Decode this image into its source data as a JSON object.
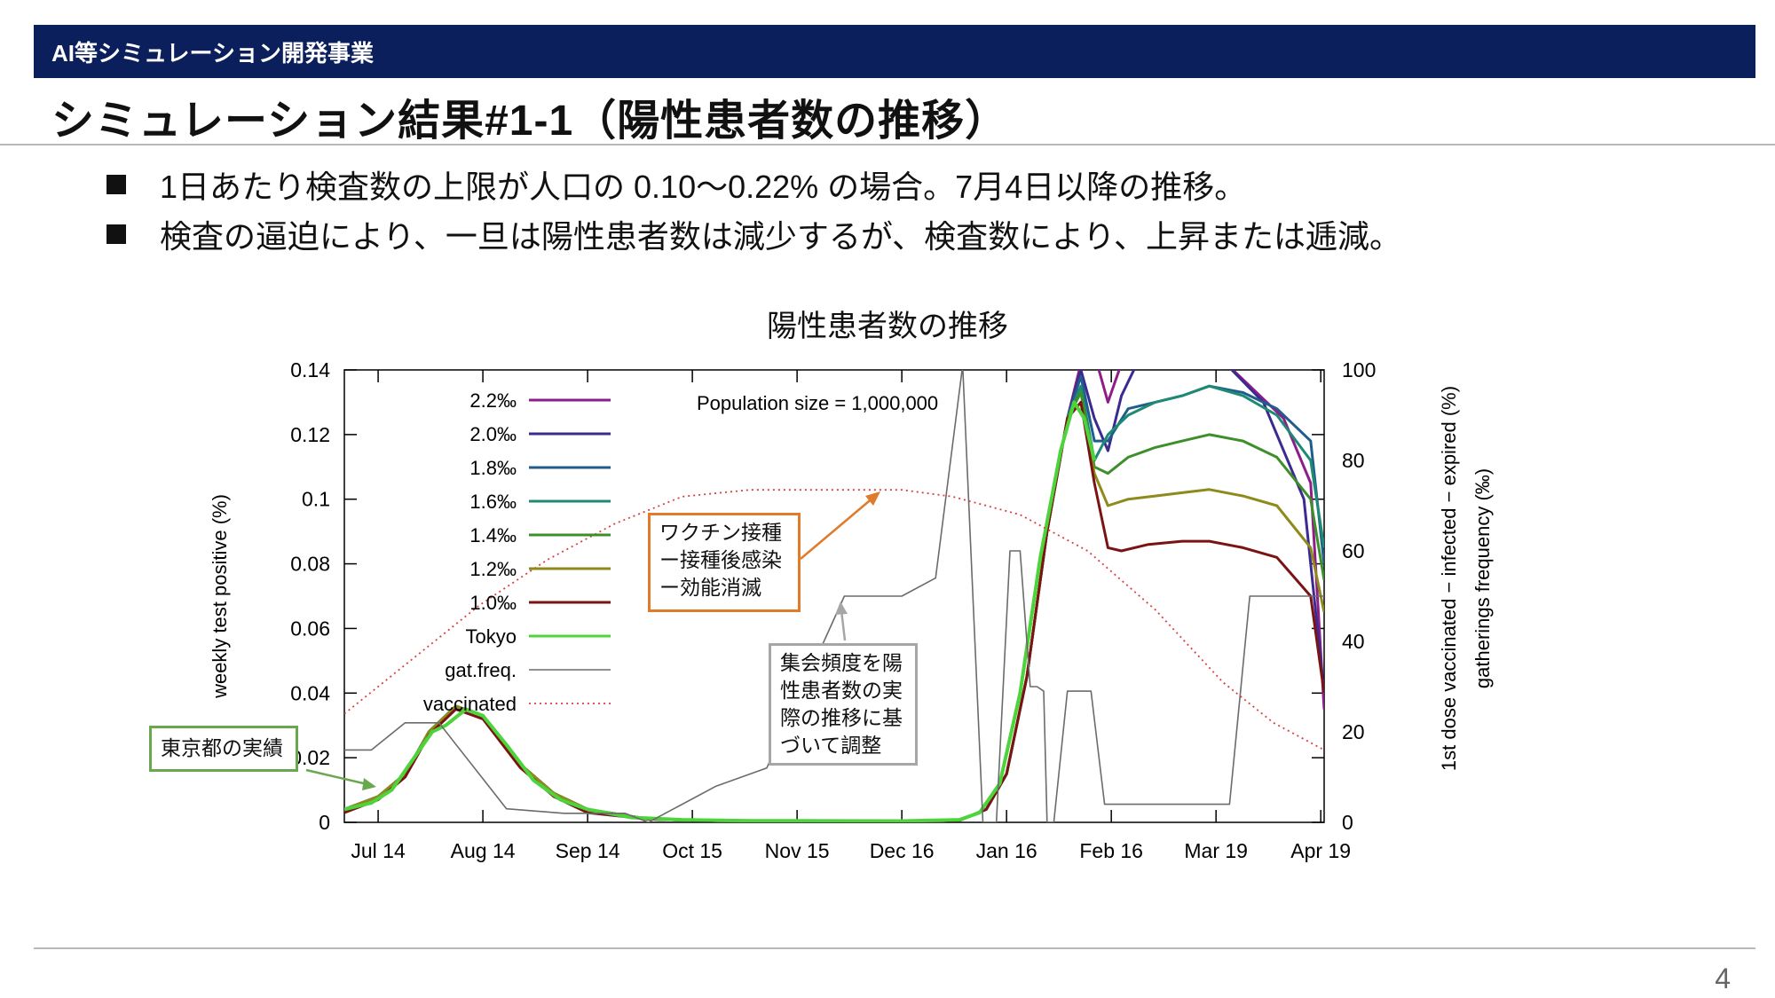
{
  "header": {
    "section_label": "AI等シミュレーション開発事業"
  },
  "title": "シミュレーション結果#1-1（陽性患者数の推移）",
  "bullets": [
    "1日あたり検査数の上限が人口の 0.10〜0.22% の場合。7月4日以降の推移。",
    "検査の逼迫により、一旦は陽性患者数は減少するが、検査数により、上昇または逓減。"
  ],
  "page_number": "4",
  "colors": {
    "header_bg": "#0a1f5c",
    "s2_2": "#8e1d8a",
    "s2_0": "#3b2a8f",
    "s1_8": "#1f5e8c",
    "s1_6": "#1f8a73",
    "s1_4": "#3d8f2a",
    "s1_2": "#8f8a1c",
    "s1_0": "#7a1414",
    "tokyo": "#4cd43a",
    "gat": "#6b6b6b",
    "vacc": "#d94040"
  },
  "annotations": {
    "population": "Population size = 1,000,000",
    "tokyo_callout": "東京都の実績",
    "vaccine_callout": [
      "ワクチン接種",
      "ー接種後感染",
      "ー効能消滅"
    ],
    "gathering_callout": [
      "集会頻度を陽",
      "性患者数の実",
      "際の推移に基",
      "づいて調整"
    ]
  },
  "chart_data": {
    "type": "line",
    "title": "陽性患者数の推移",
    "xlabel": "",
    "ylabel": "weekly test positive (%)",
    "y2label_lines": [
      "1st dose vaccinated − infected − expired (%)",
      "gatherings frequency (‰)"
    ],
    "ylim": [
      0,
      0.14
    ],
    "y2lim": [
      0,
      100
    ],
    "xlim": [
      0,
      290
    ],
    "x_ticks": [
      {
        "x": 10,
        "label": "Jul 14"
      },
      {
        "x": 41,
        "label": "Aug 14"
      },
      {
        "x": 72,
        "label": "Sep 14"
      },
      {
        "x": 103,
        "label": "Oct 15"
      },
      {
        "x": 134,
        "label": "Nov 15"
      },
      {
        "x": 165,
        "label": "Dec 16"
      },
      {
        "x": 196,
        "label": "Jan 16"
      },
      {
        "x": 227,
        "label": "Feb 16"
      },
      {
        "x": 258,
        "label": "Mar 19"
      },
      {
        "x": 289,
        "label": "Apr 19"
      }
    ],
    "y_ticks": [
      "0",
      "0.02",
      "0.04",
      "0.06",
      "0.08",
      "0.1",
      "0.12",
      "0.14"
    ],
    "y_tick_values": [
      0,
      0.02,
      0.04,
      0.06,
      0.08,
      0.1,
      0.12,
      0.14
    ],
    "y2_ticks": [
      "0",
      "20",
      "40",
      "60",
      "80",
      "100"
    ],
    "y2_tick_values": [
      0,
      20,
      40,
      60,
      80,
      100
    ],
    "legend_position": "top-left",
    "series": [
      {
        "name": "2.2‰",
        "axis": "y1",
        "style": "solid",
        "points": [
          [
            0,
            0.004
          ],
          [
            10,
            0.008
          ],
          [
            18,
            0.015
          ],
          [
            25,
            0.028
          ],
          [
            33,
            0.036
          ],
          [
            41,
            0.033
          ],
          [
            52,
            0.018
          ],
          [
            62,
            0.009
          ],
          [
            72,
            0.004
          ],
          [
            90,
            0.001
          ],
          [
            120,
            0.0003
          ],
          [
            165,
            0.0003
          ],
          [
            182,
            0.0006
          ],
          [
            190,
            0.004
          ],
          [
            196,
            0.015
          ],
          [
            202,
            0.045
          ],
          [
            208,
            0.09
          ],
          [
            214,
            0.125
          ],
          [
            218,
            0.142
          ],
          [
            222,
            0.145
          ],
          [
            226,
            0.13
          ],
          [
            230,
            0.142
          ],
          [
            240,
            0.145
          ],
          [
            258,
            0.145
          ],
          [
            278,
            0.125
          ],
          [
            286,
            0.105
          ],
          [
            290,
            0.035
          ]
        ]
      },
      {
        "name": "2.0‰",
        "axis": "y1",
        "style": "solid",
        "points": [
          [
            0,
            0.004
          ],
          [
            10,
            0.008
          ],
          [
            18,
            0.015
          ],
          [
            25,
            0.028
          ],
          [
            33,
            0.036
          ],
          [
            41,
            0.033
          ],
          [
            52,
            0.018
          ],
          [
            62,
            0.009
          ],
          [
            72,
            0.004
          ],
          [
            90,
            0.001
          ],
          [
            120,
            0.0003
          ],
          [
            165,
            0.0003
          ],
          [
            182,
            0.0006
          ],
          [
            190,
            0.004
          ],
          [
            196,
            0.015
          ],
          [
            202,
            0.045
          ],
          [
            208,
            0.09
          ],
          [
            214,
            0.125
          ],
          [
            218,
            0.14
          ],
          [
            222,
            0.125
          ],
          [
            226,
            0.115
          ],
          [
            230,
            0.132
          ],
          [
            236,
            0.145
          ],
          [
            258,
            0.145
          ],
          [
            272,
            0.13
          ],
          [
            284,
            0.1
          ],
          [
            290,
            0.04
          ]
        ]
      },
      {
        "name": "1.8‰",
        "axis": "y1",
        "style": "solid",
        "points": [
          [
            0,
            0.004
          ],
          [
            10,
            0.008
          ],
          [
            18,
            0.015
          ],
          [
            25,
            0.028
          ],
          [
            33,
            0.036
          ],
          [
            41,
            0.033
          ],
          [
            52,
            0.018
          ],
          [
            62,
            0.009
          ],
          [
            72,
            0.004
          ],
          [
            90,
            0.001
          ],
          [
            120,
            0.0003
          ],
          [
            165,
            0.0003
          ],
          [
            182,
            0.0006
          ],
          [
            190,
            0.004
          ],
          [
            196,
            0.015
          ],
          [
            202,
            0.045
          ],
          [
            208,
            0.09
          ],
          [
            214,
            0.125
          ],
          [
            218,
            0.138
          ],
          [
            222,
            0.118
          ],
          [
            226,
            0.118
          ],
          [
            232,
            0.128
          ],
          [
            240,
            0.13
          ],
          [
            248,
            0.132
          ],
          [
            256,
            0.135
          ],
          [
            266,
            0.133
          ],
          [
            276,
            0.128
          ],
          [
            286,
            0.118
          ],
          [
            290,
            0.08
          ]
        ]
      },
      {
        "name": "1.6‰",
        "axis": "y1",
        "style": "solid",
        "points": [
          [
            0,
            0.004
          ],
          [
            10,
            0.008
          ],
          [
            18,
            0.015
          ],
          [
            25,
            0.028
          ],
          [
            33,
            0.036
          ],
          [
            41,
            0.033
          ],
          [
            52,
            0.018
          ],
          [
            62,
            0.009
          ],
          [
            72,
            0.004
          ],
          [
            90,
            0.001
          ],
          [
            120,
            0.0003
          ],
          [
            165,
            0.0003
          ],
          [
            182,
            0.0006
          ],
          [
            190,
            0.004
          ],
          [
            196,
            0.015
          ],
          [
            202,
            0.045
          ],
          [
            208,
            0.09
          ],
          [
            214,
            0.125
          ],
          [
            218,
            0.135
          ],
          [
            222,
            0.112
          ],
          [
            226,
            0.12
          ],
          [
            232,
            0.126
          ],
          [
            240,
            0.13
          ],
          [
            248,
            0.132
          ],
          [
            256,
            0.135
          ],
          [
            266,
            0.132
          ],
          [
            276,
            0.126
          ],
          [
            286,
            0.112
          ],
          [
            290,
            0.085
          ]
        ]
      },
      {
        "name": "1.4‰",
        "axis": "y1",
        "style": "solid",
        "points": [
          [
            0,
            0.004
          ],
          [
            10,
            0.008
          ],
          [
            18,
            0.015
          ],
          [
            25,
            0.028
          ],
          [
            33,
            0.036
          ],
          [
            41,
            0.033
          ],
          [
            52,
            0.018
          ],
          [
            62,
            0.009
          ],
          [
            72,
            0.004
          ],
          [
            90,
            0.001
          ],
          [
            120,
            0.0003
          ],
          [
            165,
            0.0003
          ],
          [
            182,
            0.0006
          ],
          [
            190,
            0.004
          ],
          [
            196,
            0.015
          ],
          [
            202,
            0.045
          ],
          [
            208,
            0.09
          ],
          [
            214,
            0.125
          ],
          [
            218,
            0.133
          ],
          [
            222,
            0.11
          ],
          [
            226,
            0.108
          ],
          [
            232,
            0.113
          ],
          [
            240,
            0.116
          ],
          [
            248,
            0.118
          ],
          [
            256,
            0.12
          ],
          [
            266,
            0.118
          ],
          [
            276,
            0.113
          ],
          [
            286,
            0.1
          ],
          [
            290,
            0.075
          ]
        ]
      },
      {
        "name": "1.2‰",
        "axis": "y1",
        "style": "solid",
        "points": [
          [
            0,
            0.004
          ],
          [
            10,
            0.008
          ],
          [
            18,
            0.015
          ],
          [
            25,
            0.028
          ],
          [
            33,
            0.036
          ],
          [
            41,
            0.033
          ],
          [
            52,
            0.018
          ],
          [
            62,
            0.009
          ],
          [
            72,
            0.004
          ],
          [
            90,
            0.001
          ],
          [
            120,
            0.0003
          ],
          [
            165,
            0.0003
          ],
          [
            182,
            0.0006
          ],
          [
            190,
            0.004
          ],
          [
            196,
            0.015
          ],
          [
            202,
            0.045
          ],
          [
            208,
            0.09
          ],
          [
            214,
            0.125
          ],
          [
            218,
            0.13
          ],
          [
            222,
            0.108
          ],
          [
            226,
            0.098
          ],
          [
            232,
            0.1
          ],
          [
            240,
            0.101
          ],
          [
            248,
            0.102
          ],
          [
            256,
            0.103
          ],
          [
            266,
            0.101
          ],
          [
            276,
            0.098
          ],
          [
            286,
            0.085
          ],
          [
            290,
            0.065
          ]
        ]
      },
      {
        "name": "1.0‰",
        "axis": "y1",
        "style": "solid",
        "points": [
          [
            0,
            0.003
          ],
          [
            10,
            0.007
          ],
          [
            18,
            0.014
          ],
          [
            25,
            0.027
          ],
          [
            33,
            0.035
          ],
          [
            41,
            0.032
          ],
          [
            52,
            0.017
          ],
          [
            62,
            0.008
          ],
          [
            72,
            0.003
          ],
          [
            90,
            0.001
          ],
          [
            120,
            0.0003
          ],
          [
            165,
            0.0003
          ],
          [
            182,
            0.0006
          ],
          [
            190,
            0.004
          ],
          [
            196,
            0.015
          ],
          [
            202,
            0.045
          ],
          [
            208,
            0.09
          ],
          [
            214,
            0.125
          ],
          [
            218,
            0.13
          ],
          [
            222,
            0.105
          ],
          [
            226,
            0.085
          ],
          [
            230,
            0.084
          ],
          [
            238,
            0.086
          ],
          [
            248,
            0.087
          ],
          [
            256,
            0.087
          ],
          [
            266,
            0.085
          ],
          [
            276,
            0.082
          ],
          [
            286,
            0.07
          ],
          [
            290,
            0.04
          ]
        ]
      },
      {
        "name": "Tokyo",
        "axis": "y1",
        "style": "solid",
        "points": [
          [
            0,
            0.004
          ],
          [
            8,
            0.006
          ],
          [
            14,
            0.01
          ],
          [
            20,
            0.019
          ],
          [
            26,
            0.028
          ],
          [
            30,
            0.03
          ],
          [
            36,
            0.035
          ],
          [
            41,
            0.033
          ],
          [
            48,
            0.024
          ],
          [
            56,
            0.013
          ],
          [
            64,
            0.007
          ],
          [
            72,
            0.004
          ],
          [
            85,
            0.0015
          ],
          [
            100,
            0.0008
          ],
          [
            120,
            0.0005
          ],
          [
            165,
            0.0004
          ],
          [
            182,
            0.0008
          ],
          [
            188,
            0.003
          ],
          [
            194,
            0.012
          ],
          [
            200,
            0.04
          ],
          [
            206,
            0.082
          ],
          [
            212,
            0.115
          ],
          [
            216,
            0.13
          ],
          [
            219,
            0.125
          ],
          [
            222,
            0.112
          ]
        ]
      },
      {
        "name": "gat.freq.",
        "axis": "y2",
        "style": "solid",
        "points": [
          [
            0,
            16
          ],
          [
            8,
            16
          ],
          [
            18,
            22
          ],
          [
            28,
            22
          ],
          [
            48,
            3
          ],
          [
            65,
            2
          ],
          [
            83,
            2
          ],
          [
            90,
            0
          ],
          [
            110,
            8
          ],
          [
            125,
            12
          ],
          [
            148,
            50
          ],
          [
            152,
            50
          ],
          [
            165,
            50
          ],
          [
            175,
            54
          ],
          [
            183,
            101
          ],
          [
            189,
            0
          ],
          [
            193,
            0
          ],
          [
            197,
            60
          ],
          [
            200,
            60
          ],
          [
            203,
            30
          ],
          [
            205,
            30
          ],
          [
            207,
            29
          ],
          [
            208,
            0
          ],
          [
            210,
            0
          ],
          [
            214,
            29
          ],
          [
            221,
            29
          ],
          [
            225,
            4
          ],
          [
            245,
            4
          ],
          [
            262,
            4
          ],
          [
            268,
            50
          ],
          [
            290,
            50
          ]
        ]
      },
      {
        "name": "vaccinated",
        "axis": "y2",
        "style": "dotted",
        "points": [
          [
            0,
            24
          ],
          [
            20,
            36
          ],
          [
            40,
            48
          ],
          [
            60,
            58
          ],
          [
            80,
            66
          ],
          [
            100,
            72
          ],
          [
            120,
            73.5
          ],
          [
            165,
            73.5
          ],
          [
            180,
            72
          ],
          [
            200,
            68
          ],
          [
            220,
            60
          ],
          [
            240,
            47
          ],
          [
            260,
            31
          ],
          [
            275,
            22
          ],
          [
            285,
            18
          ],
          [
            290,
            16
          ]
        ]
      }
    ]
  }
}
